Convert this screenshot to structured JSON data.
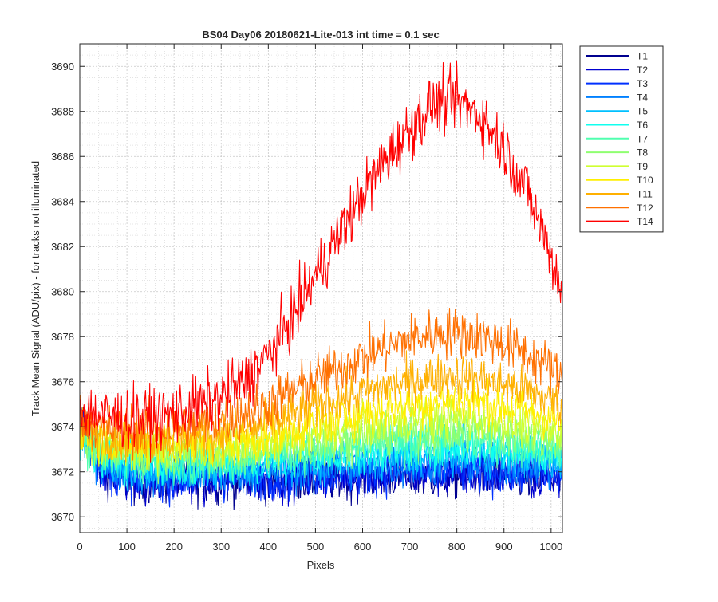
{
  "chart_data": {
    "type": "line",
    "title": "BS04 Day06 20180621-Lite-013 int time = 0.1 sec",
    "xlabel": "Pixels",
    "ylabel": "Track Mean Signal (ADU/pix) - for tracks not illuminated",
    "xlim": [
      0,
      1024
    ],
    "ylim": [
      3669.3,
      3691
    ],
    "xticks": [
      0,
      100,
      200,
      300,
      400,
      500,
      600,
      700,
      800,
      900,
      1000
    ],
    "yticks": [
      3670,
      3672,
      3674,
      3676,
      3678,
      3680,
      3682,
      3684,
      3686,
      3688,
      3690
    ],
    "grid": true,
    "minor_grid": true,
    "legend_position": "outside-top-right",
    "x": [
      0,
      50,
      100,
      150,
      200,
      250,
      300,
      350,
      400,
      450,
      500,
      550,
      600,
      650,
      700,
      750,
      800,
      850,
      900,
      950,
      1000,
      1024
    ],
    "series": [
      {
        "name": "T1",
        "color": "#00008f",
        "noise": 0.9,
        "values": [
          3674.5,
          3672.0,
          3671.6,
          3671.5,
          3671.6,
          3671.6,
          3671.6,
          3671.6,
          3671.6,
          3671.7,
          3671.7,
          3671.7,
          3671.8,
          3671.8,
          3671.8,
          3671.8,
          3671.8,
          3671.8,
          3671.8,
          3671.7,
          3671.6,
          3671.6
        ]
      },
      {
        "name": "T2",
        "color": "#0000d0",
        "noise": 0.9,
        "values": [
          3674.3,
          3672.0,
          3671.7,
          3671.6,
          3671.6,
          3671.6,
          3671.6,
          3671.7,
          3671.7,
          3671.7,
          3671.8,
          3671.8,
          3671.8,
          3671.9,
          3671.9,
          3671.9,
          3671.9,
          3671.9,
          3671.9,
          3671.8,
          3671.7,
          3671.7
        ]
      },
      {
        "name": "T3",
        "color": "#0030ff",
        "noise": 0.9,
        "values": [
          3674.0,
          3672.1,
          3671.8,
          3671.7,
          3671.7,
          3671.7,
          3671.7,
          3671.8,
          3671.8,
          3671.8,
          3671.9,
          3671.9,
          3672.0,
          3672.0,
          3672.0,
          3672.0,
          3672.1,
          3672.0,
          3672.0,
          3671.9,
          3671.8,
          3671.8
        ]
      },
      {
        "name": "T4",
        "color": "#0080ff",
        "noise": 0.85,
        "values": [
          3673.8,
          3672.2,
          3672.0,
          3671.9,
          3671.9,
          3671.9,
          3671.9,
          3672.0,
          3672.0,
          3672.1,
          3672.1,
          3672.2,
          3672.2,
          3672.3,
          3672.3,
          3672.3,
          3672.4,
          3672.3,
          3672.3,
          3672.2,
          3672.1,
          3672.1
        ]
      },
      {
        "name": "T5",
        "color": "#00c0ff",
        "noise": 0.85,
        "values": [
          3673.7,
          3672.4,
          3672.2,
          3672.1,
          3672.1,
          3672.1,
          3672.1,
          3672.2,
          3672.2,
          3672.3,
          3672.4,
          3672.5,
          3672.6,
          3672.6,
          3672.7,
          3672.7,
          3672.8,
          3672.7,
          3672.7,
          3672.6,
          3672.5,
          3672.4
        ]
      },
      {
        "name": "T6",
        "color": "#10ffef",
        "noise": 0.85,
        "values": [
          3673.6,
          3672.6,
          3672.4,
          3672.3,
          3672.3,
          3672.3,
          3672.3,
          3672.4,
          3672.4,
          3672.5,
          3672.6,
          3672.7,
          3672.8,
          3672.9,
          3673.0,
          3673.0,
          3673.1,
          3673.0,
          3673.0,
          3672.9,
          3672.8,
          3672.7
        ]
      },
      {
        "name": "T7",
        "color": "#50ffaf",
        "noise": 0.85,
        "values": [
          3673.6,
          3672.8,
          3672.6,
          3672.5,
          3672.5,
          3672.5,
          3672.5,
          3672.6,
          3672.7,
          3672.8,
          3672.9,
          3673.0,
          3673.1,
          3673.2,
          3673.3,
          3673.4,
          3673.4,
          3673.4,
          3673.3,
          3673.2,
          3673.1,
          3673.0
        ]
      },
      {
        "name": "T8",
        "color": "#8fff70",
        "noise": 0.85,
        "values": [
          3673.6,
          3673.0,
          3672.8,
          3672.7,
          3672.7,
          3672.7,
          3672.8,
          3672.8,
          3672.9,
          3673.1,
          3673.2,
          3673.3,
          3673.5,
          3673.6,
          3673.7,
          3673.8,
          3673.8,
          3673.8,
          3673.7,
          3673.6,
          3673.4,
          3673.3
        ]
      },
      {
        "name": "T9",
        "color": "#cfff30",
        "noise": 0.85,
        "values": [
          3673.7,
          3673.2,
          3673.0,
          3672.9,
          3672.9,
          3673.0,
          3673.0,
          3673.1,
          3673.2,
          3673.4,
          3673.6,
          3673.8,
          3674.0,
          3674.1,
          3674.2,
          3674.3,
          3674.4,
          3674.3,
          3674.2,
          3674.0,
          3673.8,
          3673.7
        ]
      },
      {
        "name": "T10",
        "color": "#ffef00",
        "noise": 0.9,
        "values": [
          3673.8,
          3673.4,
          3673.2,
          3673.2,
          3673.2,
          3673.3,
          3673.3,
          3673.4,
          3673.6,
          3673.9,
          3674.1,
          3674.4,
          3674.6,
          3674.8,
          3675.0,
          3675.1,
          3675.2,
          3675.1,
          3674.9,
          3674.7,
          3674.4,
          3674.2
        ]
      },
      {
        "name": "T11",
        "color": "#ffb000",
        "noise": 0.9,
        "values": [
          3674.0,
          3673.6,
          3673.5,
          3673.5,
          3673.5,
          3673.6,
          3673.7,
          3673.9,
          3674.1,
          3674.5,
          3674.9,
          3675.2,
          3675.5,
          3675.8,
          3676.0,
          3676.2,
          3676.3,
          3676.1,
          3675.9,
          3675.6,
          3675.2,
          3674.9
        ]
      },
      {
        "name": "T12",
        "color": "#ff7000",
        "noise": 1.0,
        "values": [
          3674.3,
          3673.9,
          3673.9,
          3673.9,
          3674.0,
          3674.1,
          3674.3,
          3674.6,
          3675.0,
          3675.6,
          3676.1,
          3676.6,
          3677.1,
          3677.5,
          3677.9,
          3678.1,
          3678.2,
          3678.0,
          3677.7,
          3677.2,
          3676.6,
          3676.2
        ]
      },
      {
        "name": "T14",
        "color": "#ff0000",
        "noise": 1.2,
        "values": [
          3674.8,
          3674.5,
          3674.4,
          3674.4,
          3674.6,
          3674.9,
          3675.3,
          3676.0,
          3677.2,
          3678.8,
          3680.7,
          3682.5,
          3684.3,
          3685.9,
          3687.2,
          3688.3,
          3688.5,
          3687.8,
          3686.4,
          3684.4,
          3681.6,
          3680.0
        ]
      }
    ]
  }
}
